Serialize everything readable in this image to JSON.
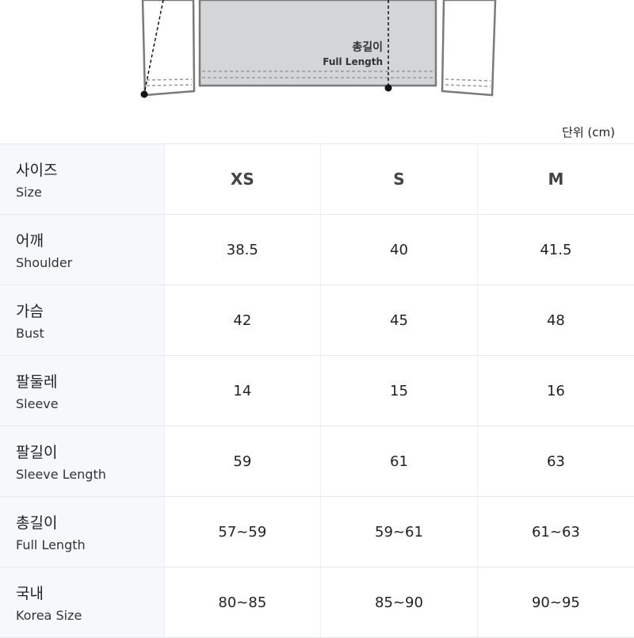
{
  "diagram": {
    "label_ko": "총길이",
    "label_en": "Full Length"
  },
  "unit": "단위 (cm)",
  "header": {
    "ko": "사이즈",
    "en": "Size",
    "sizes": [
      "XS",
      "S",
      "M"
    ]
  },
  "rows": [
    {
      "ko": "어깨",
      "en": "Shoulder",
      "values": [
        "38.5",
        "40",
        "41.5"
      ]
    },
    {
      "ko": "가슴",
      "en": "Bust",
      "values": [
        "42",
        "45",
        "48"
      ]
    },
    {
      "ko": "팔둘레",
      "en": "Sleeve",
      "values": [
        "14",
        "15",
        "16"
      ]
    },
    {
      "ko": "팔길이",
      "en": "Sleeve Length",
      "values": [
        "59",
        "61",
        "63"
      ]
    },
    {
      "ko": "총길이",
      "en": "Full Length",
      "values": [
        "57~59",
        "59~61",
        "61~63"
      ]
    },
    {
      "ko": "국내",
      "en": "Korea Size",
      "values": [
        "80~85",
        "85~90",
        "90~95"
      ]
    }
  ]
}
